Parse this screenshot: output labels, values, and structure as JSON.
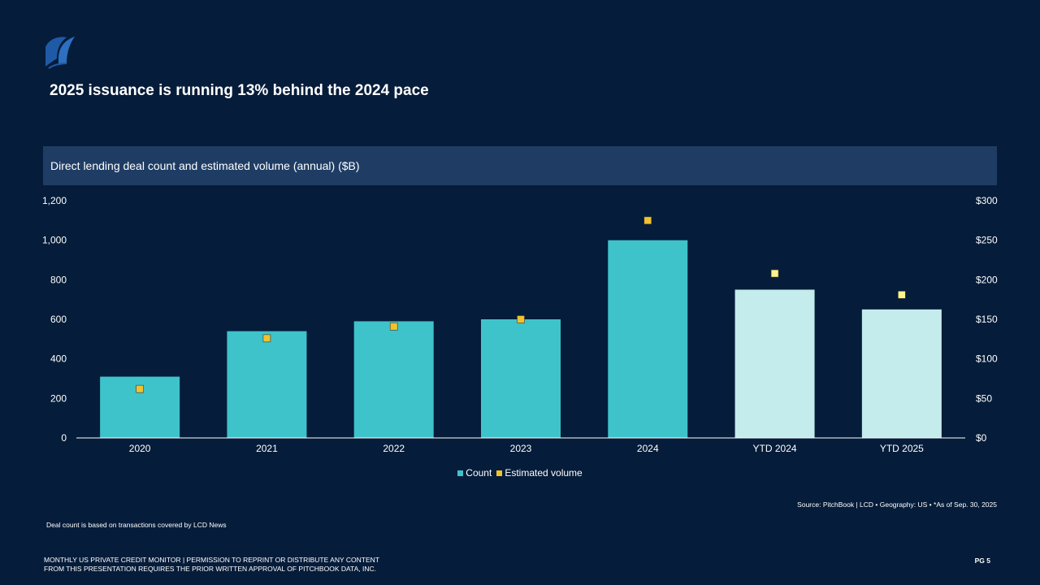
{
  "headline": "2025 issuance is running 13% behind the 2024 pace",
  "chart_header": "Direct lending deal count and estimated volume (annual) ($B)",
  "colors": {
    "count": "#3fc3ca",
    "count_ytd": "#c4ecec",
    "volume": "#f2c12e",
    "volume_ytd": "#fff38c",
    "background": "#051c3a",
    "header_bg": "#1f3d64"
  },
  "chart_data": {
    "type": "bar",
    "title": "Direct lending deal count and estimated volume (annual) ($B)",
    "categories": [
      "2020",
      "2021",
      "2022",
      "2023",
      "2024",
      "YTD 2024",
      "YTD 2025"
    ],
    "series": [
      {
        "name": "Count",
        "axis": "left",
        "mark": "bar",
        "values": [
          310,
          540,
          590,
          600,
          1000,
          750,
          650
        ]
      },
      {
        "name": "Estimated volume",
        "axis": "right",
        "mark": "square-marker",
        "values": [
          62,
          126,
          141,
          150,
          275,
          208,
          181
        ]
      }
    ],
    "ylim_left": [
      0,
      1200
    ],
    "ylim_right": [
      0,
      300
    ],
    "yticks_left": [
      "0",
      "200",
      "400",
      "600",
      "800",
      "1,000",
      "1,200"
    ],
    "yticks_right": [
      "$0",
      "$50",
      "$100",
      "$150",
      "$200",
      "$250",
      "$300"
    ],
    "ytd_categories": [
      "YTD 2024",
      "YTD 2025"
    ],
    "legend": [
      "Count",
      "Estimated volume"
    ],
    "legend_position": "bottom-center",
    "grid": false
  },
  "source": "Source: PitchBook | LCD  •  Geography: US  •  *As of Sep. 30, 2025",
  "note": "Deal count is based on transactions covered by LCD News",
  "footer_line1": "MONTHLY US PRIVATE CREDIT MONITOR | PERMISSION TO REPRINT OR DISTRIBUTE ANY CONTENT",
  "footer_line2": "FROM THIS PRESENTATION REQUIRES THE PRIOR WRITTEN APPROVAL OF PITCHBOOK DATA, INC.",
  "page_number": "PG 5"
}
